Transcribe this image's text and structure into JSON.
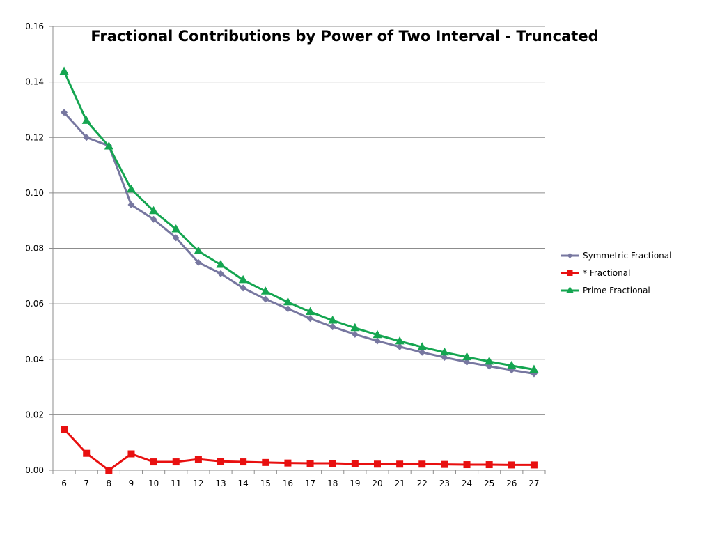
{
  "chart_data": {
    "type": "line",
    "title": "Fractional Contributions by Power of Two Interval - Truncated",
    "xlabel": "",
    "ylabel": "",
    "categories": [
      "6",
      "7",
      "8",
      "9",
      "10",
      "11",
      "12",
      "13",
      "14",
      "15",
      "16",
      "17",
      "18",
      "19",
      "20",
      "21",
      "22",
      "23",
      "24",
      "25",
      "26",
      "27"
    ],
    "ylim": [
      0,
      0.16
    ],
    "yticks": [
      "0.00",
      "0.02",
      "0.04",
      "0.06",
      "0.08",
      "0.10",
      "0.12",
      "0.14",
      "0.16"
    ],
    "grid": true,
    "legend_position": "right",
    "series": [
      {
        "name": "Symmetric Fractional",
        "color": "#7777a0",
        "marker": "diamond",
        "values": [
          0.129,
          0.12,
          0.117,
          0.0957,
          0.0905,
          0.0838,
          0.0749,
          0.0709,
          0.0657,
          0.0617,
          0.0582,
          0.0547,
          0.0517,
          0.049,
          0.0466,
          0.0445,
          0.0425,
          0.0407,
          0.039,
          0.0375,
          0.0361,
          0.0348
        ]
      },
      {
        "name": "* Fractional",
        "color": "#e81010",
        "marker": "square",
        "values": [
          0.0148,
          0.0061,
          0.0,
          0.0059,
          0.003,
          0.003,
          0.004,
          0.0032,
          0.003,
          0.0028,
          0.0026,
          0.0025,
          0.0025,
          0.0023,
          0.0022,
          0.0022,
          0.0022,
          0.0021,
          0.002,
          0.002,
          0.0019,
          0.0019
        ]
      },
      {
        "name": "Prime Fractional",
        "color": "#14a550",
        "marker": "triangle",
        "values": [
          0.1438,
          0.126,
          0.1168,
          0.1013,
          0.0935,
          0.0869,
          0.079,
          0.0741,
          0.0686,
          0.0645,
          0.0606,
          0.0571,
          0.054,
          0.0513,
          0.0488,
          0.0465,
          0.0444,
          0.0425,
          0.0408,
          0.0392,
          0.0377,
          0.0363
        ]
      }
    ]
  }
}
